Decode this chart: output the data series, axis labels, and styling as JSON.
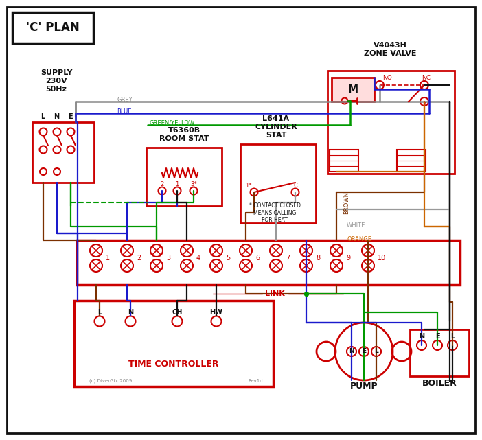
{
  "title": "'C' PLAN",
  "bg": "#ffffff",
  "red": "#cc0000",
  "blue": "#1a1acc",
  "green": "#009900",
  "grey": "#888888",
  "brown": "#7b3000",
  "orange": "#cc6600",
  "black": "#111111",
  "white_wire": "#999999",
  "terminal_labels": [
    "1",
    "2",
    "3",
    "4",
    "5",
    "6",
    "7",
    "8",
    "9",
    "10"
  ],
  "tc_labels": [
    "L",
    "N",
    "CH",
    "HW"
  ],
  "pump_labels": [
    "N",
    "E",
    "L"
  ],
  "boiler_labels": [
    "N",
    "E",
    "L"
  ],
  "lne_labels": [
    "L",
    "N",
    "E"
  ],
  "supply_title": "SUPPLY\n230V\n50Hz",
  "zone_valve_title": "V4043H\nZONE VALVE",
  "room_stat_title": "T6360B\nROOM STAT",
  "cyl_stat_title": "L641A\nCYLINDER\nSTAT",
  "tc_title": "TIME CONTROLLER",
  "pump_title": "PUMP",
  "boiler_title": "BOILER",
  "contact_note": "* CONTACT CLOSED\nMEANS CALLING\nFOR HEAT",
  "copyright": "(c) DiverGfx 2009",
  "rev": "Rev1d",
  "link_label": "LINK"
}
